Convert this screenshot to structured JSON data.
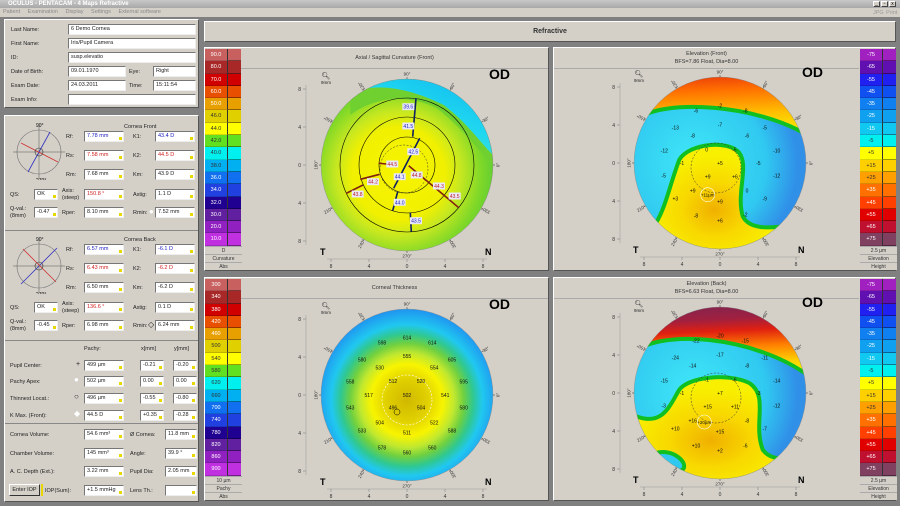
{
  "window": {
    "title": "OCULUS - PENTACAM - 4 Maps Refractive",
    "controls": [
      "_",
      "▫",
      "x"
    ],
    "actions": [
      "JPG",
      "Print"
    ]
  },
  "menu": [
    "Patient",
    "Examination",
    "Display",
    "Settings",
    "External software"
  ],
  "patient": {
    "last_name_label": "Last Name:",
    "last_name": "6 Demo Cornea",
    "first_name_label": "First Name:",
    "first_name": "Iris/Pupil Camera",
    "id_label": "ID:",
    "id": "susp.elevatio",
    "dob_label": "Date of Birth:",
    "dob": "09.01.1970",
    "eye_label": "Eye:",
    "eye": "Right",
    "exam_date_label": "Exam Date:",
    "exam_date": "24.03.2011",
    "time_label": "Time:",
    "time": "15:11:54",
    "exam_info_label": "Exam Info:",
    "exam_info": ""
  },
  "front": {
    "title": "Cornea Front",
    "compass": [
      "90°",
      "0°",
      "180°",
      "270°"
    ],
    "rf_label": "Rf:",
    "rf": "7.78 mm",
    "rs_label": "Rs:",
    "rs": "7.58 mm",
    "rm_label": "Rm:",
    "rm": "7.68 mm",
    "k1_label": "K1:",
    "k1": "43.4 D",
    "k2_label": "K2:",
    "k2": "44.5 D",
    "km_label": "Km:",
    "km": "43.9 D",
    "qs_label": "QS:",
    "qs": "OK",
    "axis_label": "Axis:",
    "axis_sub": "(steep)",
    "axis": "150.8 °",
    "astig_label": "Astig:",
    "astig": "1.1 D",
    "qval_label": "Q-val.:",
    "qval_sub": "(8mm)",
    "qval": "-0.47",
    "rper_label": "Rper:",
    "rper": "8.10 mm",
    "rmin_label": "Rmin:",
    "rmin": "7.52 mm"
  },
  "back": {
    "title": "Cornea Back",
    "compass": [
      "90°",
      "0°",
      "180°",
      "270°"
    ],
    "rf_label": "Rf:",
    "rf": "6.57 mm",
    "rs_label": "Rs:",
    "rs": "6.43 mm",
    "rm_label": "Rm:",
    "rm": "6.50 mm",
    "k1_label": "K1:",
    "k1": "-6.1 D",
    "k2_label": "K2:",
    "k2": "-6.2 D",
    "km_label": "Km:",
    "km": "-6.2 D",
    "qs_label": "QS:",
    "qs": "OK",
    "axis_label": "Axis:",
    "axis_sub": "(steep)",
    "axis": "136.6 °",
    "astig_label": "Astig:",
    "astig": "0.1 D",
    "qval_label": "Q-val.:",
    "qval_sub": "(8mm)",
    "qval": "-0.45",
    "rper_label": "Rper:",
    "rper": "6.98 mm",
    "rmin_label": "Rmin:",
    "rmin": "6.24 mm"
  },
  "pachy": {
    "col_pachy": "Pachy:",
    "col_x": "x[mm]",
    "col_y": "y[mm]",
    "rows": [
      {
        "label": "Pupil Center:",
        "pachy": "499 µm",
        "x": "-0.21",
        "y": "-0.20"
      },
      {
        "label": "Pachy Apex:",
        "pachy": "502 µm",
        "x": "0.00",
        "y": "0.00"
      },
      {
        "label": "Thinnest Locat.:",
        "pachy": "496 µm",
        "x": "-0.55",
        "y": "-0.80"
      },
      {
        "label": "K Max. (Front):",
        "pachy": "44.5 D",
        "x": "+0.35",
        "y": "-0.28"
      }
    ]
  },
  "volume": {
    "cornea_volume_label": "Cornea Volume:",
    "cornea_volume": "54.6 mm³",
    "cornea_dia_label": "Ø Cornea:",
    "cornea_dia": "11.8 mm",
    "chamber_volume_label": "Chamber Volume:",
    "chamber_volume": "145 mm³",
    "angle_label": "Angle:",
    "angle": "39.9 °",
    "ac_depth_label": "A. C. Depth (Ext.):",
    "ac_depth": "3.22 mm",
    "pupil_dia_label": "Pupil Dia:",
    "pupil_dia": "2.05 mm",
    "enter_iop": "Enter IOP",
    "iop_label": "IOP(Sum):",
    "iop": "+1.5 mmHg",
    "lens_label": "Lens Th.:",
    "lens": ""
  },
  "header": {
    "title": "Refractive"
  },
  "maps": {
    "degrees": [
      "90°",
      "60°",
      "30°",
      "0°",
      "330°",
      "300°",
      "270°",
      "240°",
      "210°",
      "180°",
      "150°",
      "120°"
    ],
    "axis_ticks": [
      "8",
      "4",
      "0",
      "4",
      "8"
    ],
    "eye": "OD",
    "temporal": "T",
    "nasal": "N",
    "zoom_label": "9mm",
    "curvature": {
      "title": "Axial / Sagittal Curvature (Front)",
      "steep_values": [
        "39.6",
        "41.5",
        "42.5",
        "44.1",
        "44.0",
        "43.5"
      ],
      "flat_values": [
        "44.5",
        "44.8",
        "44.2",
        "44.3",
        "43.8",
        "43.5"
      ]
    },
    "elev_front": {
      "title": "Elevation (Front)",
      "subtitle": "BFS=7.86 Float, Dia=8.00",
      "values": [
        "-6",
        "-2",
        "-8",
        "-13",
        "-7",
        "-5",
        "-8",
        "-6",
        "-12",
        "0",
        "-5",
        "-10",
        "-1",
        "+5",
        "-5",
        "-5",
        "+9",
        "+6",
        "-12",
        "+9",
        "0",
        "+3",
        "+9",
        "-9",
        "-8",
        "+6",
        "-2"
      ],
      "marker": "+11µm"
    },
    "thickness": {
      "title": "Corneal Thickness",
      "values": [
        "598",
        "614",
        "614",
        "580",
        "555",
        "605",
        "530",
        "554",
        "558",
        "512",
        "520",
        "595",
        "517",
        "502",
        "541",
        "543",
        "496",
        "504",
        "580",
        "504",
        "522",
        "533",
        "511",
        "588",
        "578",
        "560",
        "560"
      ]
    },
    "elev_back": {
      "title": "Elevation (Back)",
      "subtitle": "BFS=6.63 Float, Dia=8.00",
      "values": [
        "-22",
        "-20",
        "-15",
        "-24",
        "-17",
        "-11",
        "-14",
        "-8",
        "-15",
        "-1",
        "-6",
        "-14",
        "-1",
        "+7",
        "-3",
        "-3",
        "+15",
        "+11",
        "-12",
        "+16",
        "-8",
        "+10",
        "+15",
        "-7",
        "+10",
        "-6",
        "+2"
      ],
      "marker": "+20µm"
    }
  },
  "scales": {
    "curvature": {
      "values": [
        "90.0",
        "80.0",
        "70.0",
        "60.0",
        "50.0",
        "46.0",
        "44.0",
        "42.0",
        "40.0",
        "38.0",
        "36.0",
        "34.0",
        "32.0",
        "30.0",
        "20.0",
        "10.0"
      ],
      "step": "D",
      "type": "Curvature",
      "mode": "Abs"
    },
    "pachy": {
      "values": [
        "300",
        "340",
        "380",
        "420",
        "460",
        "500",
        "540",
        "580",
        "620",
        "660",
        "700",
        "740",
        "780",
        "820",
        "860",
        "900"
      ],
      "step": "10 µm",
      "type": "Pachy",
      "mode": "Abs"
    },
    "elevation_front": {
      "values": [
        "-75",
        "-65",
        "-55",
        "-45",
        "-35",
        "-25",
        "-15",
        "-5",
        "+5",
        "+15",
        "+25",
        "+35",
        "+45",
        "+55",
        "+65",
        "+75"
      ],
      "step": "2.5 µm",
      "type": "Elevation",
      "mode": "Height"
    },
    "elevation_back": {
      "values": [
        "-75",
        "-65",
        "-55",
        "-45",
        "-35",
        "-25",
        "-15",
        "-5",
        "+5",
        "+15",
        "+25",
        "+35",
        "+45",
        "+55",
        "+65",
        "+75"
      ],
      "step": "2.5 µm",
      "type": "Elevation",
      "mode": "Height"
    },
    "colors_abs": [
      "#c86060",
      "#a82828",
      "#d00000",
      "#e85000",
      "#e8a000",
      "#e0d000",
      "#ffff00",
      "#60e020",
      "#00f0f0",
      "#00b0f0",
      "#1070f0",
      "#2040e0",
      "#200090",
      "#6020a0",
      "#9020c0",
      "#c030e0"
    ],
    "colors_elev": [
      "#a020c0",
      "#6010b0",
      "#2020f0",
      "#1050f0",
      "#1080f0",
      "#10a0f0",
      "#10c8f0",
      "#00f0f0",
      "#ffff00",
      "#ffd000",
      "#ffa000",
      "#ff7000",
      "#ff4000",
      "#e00000",
      "#c01030",
      "#804060"
    ]
  }
}
